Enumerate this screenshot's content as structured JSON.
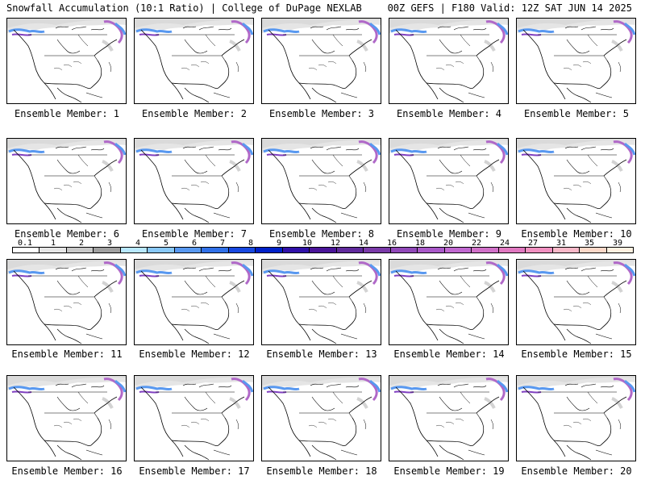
{
  "header": {
    "left_title": "Snowfall Accumulation (10:1 Ratio) | College of DuPage NEXLAB",
    "right_title": "00Z GEFS | F180 Valid: 12Z SAT JUN 14 2025"
  },
  "colorbar": {
    "labels": [
      "0.1",
      "1",
      "2",
      "3",
      "4",
      "5",
      "6",
      "7",
      "8",
      "9",
      "10",
      "12",
      "14",
      "16",
      "18",
      "20",
      "22",
      "24",
      "27",
      "31",
      "35",
      "39"
    ],
    "colors": [
      "#ffffff",
      "#e6e6e6",
      "#c8c8c8",
      "#a0a0a0",
      "#b8e8ff",
      "#88c8f8",
      "#5898f0",
      "#3070e8",
      "#1848e0",
      "#0020c8",
      "#3010a8",
      "#4a1498",
      "#602a9c",
      "#7a3aa8",
      "#9048b8",
      "#a858c8",
      "#c068d0",
      "#d070c8",
      "#e078c0",
      "#f090c0",
      "#f8b8c8",
      "#fcd8c8",
      "#fff0e0"
    ]
  },
  "members": [
    {
      "label": "Ensemble Member: 1"
    },
    {
      "label": "Ensemble Member: 2"
    },
    {
      "label": "Ensemble Member: 3"
    },
    {
      "label": "Ensemble Member: 4"
    },
    {
      "label": "Ensemble Member: 5"
    },
    {
      "label": "Ensemble Member: 6"
    },
    {
      "label": "Ensemble Member: 7"
    },
    {
      "label": "Ensemble Member: 8"
    },
    {
      "label": "Ensemble Member: 9"
    },
    {
      "label": "Ensemble Member: 10"
    },
    {
      "label": "Ensemble Member: 11"
    },
    {
      "label": "Ensemble Member: 12"
    },
    {
      "label": "Ensemble Member: 13"
    },
    {
      "label": "Ensemble Member: 14"
    },
    {
      "label": "Ensemble Member: 15"
    },
    {
      "label": "Ensemble Member: 16"
    },
    {
      "label": "Ensemble Member: 17"
    },
    {
      "label": "Ensemble Member: 18"
    },
    {
      "label": "Ensemble Member: 19"
    },
    {
      "label": "Ensemble Member: 20"
    }
  ],
  "colors": {
    "snow_light": "#c8c8c8",
    "snow_mid": "#5898f0",
    "snow_heavy": "#8040c0",
    "snow_extreme": "#d050b0"
  }
}
